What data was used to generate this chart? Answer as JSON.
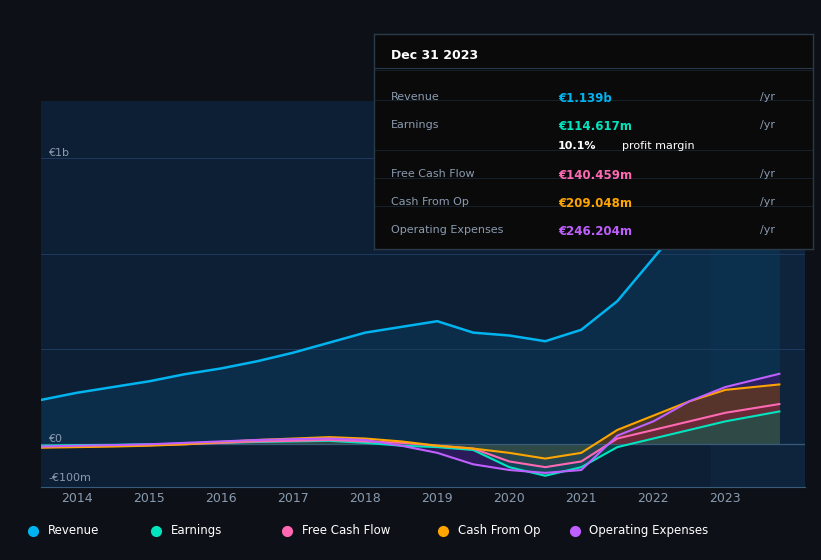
{
  "bg_color": "#0d1117",
  "plot_bg_color": "#0d1f35",
  "years": [
    2013.5,
    2014,
    2014.5,
    2015,
    2015.5,
    2016,
    2016.5,
    2017,
    2017.5,
    2018,
    2018.5,
    2019,
    2019.25,
    2019.5,
    2020,
    2020.5,
    2021,
    2021.5,
    2022,
    2022.5,
    2023,
    2023.75
  ],
  "revenue": [
    155,
    180,
    200,
    220,
    245,
    265,
    290,
    320,
    355,
    390,
    410,
    430,
    410,
    390,
    380,
    360,
    400,
    500,
    650,
    800,
    950,
    1139
  ],
  "earnings": [
    -5,
    -3,
    -2,
    0,
    2,
    5,
    8,
    10,
    12,
    5,
    -5,
    -10,
    -15,
    -20,
    -80,
    -110,
    -80,
    -10,
    20,
    50,
    80,
    114.617
  ],
  "free_cash_flow": [
    -10,
    -8,
    -5,
    -3,
    0,
    5,
    10,
    12,
    15,
    10,
    5,
    -5,
    -10,
    -15,
    -60,
    -80,
    -60,
    20,
    50,
    80,
    110,
    140.459
  ],
  "cash_from_op": [
    -12,
    -10,
    -8,
    -5,
    0,
    8,
    15,
    20,
    25,
    20,
    10,
    -5,
    -10,
    -15,
    -30,
    -50,
    -30,
    50,
    100,
    150,
    190,
    209.048
  ],
  "operating_expenses": [
    -8,
    -5,
    -3,
    0,
    5,
    10,
    15,
    18,
    20,
    15,
    -5,
    -30,
    -50,
    -70,
    -90,
    -100,
    -90,
    30,
    80,
    150,
    200,
    246.204
  ],
  "revenue_color": "#00b4f0",
  "earnings_color": "#00e5c0",
  "fcf_color": "#ff69b4",
  "cash_op_color": "#ffa500",
  "op_exp_color": "#bf5fff",
  "revenue_fill": "#0a3a5c",
  "earnings_fill": "#006655",
  "fcf_fill": "#7a2040",
  "cash_op_fill": "#7a4500",
  "op_exp_fill": "#3d1a6e",
  "ylim_min": -150,
  "ylim_max": 1200,
  "ylabel_1b": "€1b",
  "ylabel_0": "€0",
  "ylabel_neg100m": "-€100m",
  "x_ticks": [
    2014,
    2015,
    2016,
    2017,
    2018,
    2019,
    2020,
    2021,
    2022,
    2023
  ],
  "legend_items": [
    {
      "label": "Revenue",
      "color": "#00b4f0"
    },
    {
      "label": "Earnings",
      "color": "#00e5c0"
    },
    {
      "label": "Free Cash Flow",
      "color": "#ff69b4"
    },
    {
      "label": "Cash From Op",
      "color": "#ffa500"
    },
    {
      "label": "Operating Expenses",
      "color": "#bf5fff"
    }
  ],
  "info_box": {
    "date": "Dec 31 2023",
    "rows": [
      {
        "label": "Revenue",
        "value": "€1.139b",
        "value_color": "#00b4f0"
      },
      {
        "label": "Earnings",
        "value": "€114.617m",
        "value_color": "#00e5c0"
      },
      {
        "label": "",
        "value": "10.1% profit margin",
        "value_color": "#ffffff"
      },
      {
        "label": "Free Cash Flow",
        "value": "€140.459m",
        "value_color": "#ff69b4"
      },
      {
        "label": "Cash From Op",
        "value": "€209.048m",
        "value_color": "#ffa500"
      },
      {
        "label": "Operating Expenses",
        "value": "€246.204m",
        "value_color": "#bf5fff"
      }
    ]
  }
}
